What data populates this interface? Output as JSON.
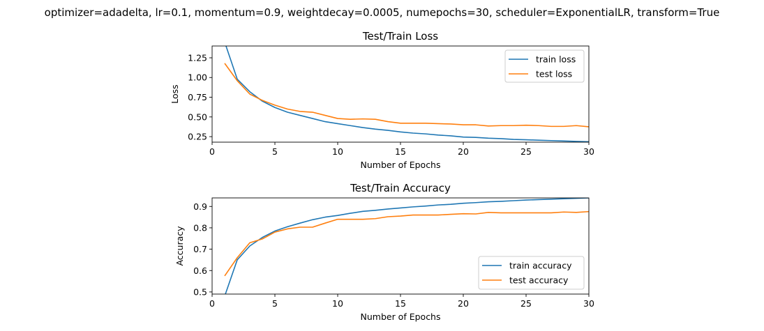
{
  "figure": {
    "suptitle": "optimizer=adadelta, lr=0.1, momentum=0.9, weightdecay=0.0005, numepochs=30, scheduler=ExponentialLR, transform=True"
  },
  "chart_data": [
    {
      "type": "line",
      "title": "Test/Train Loss",
      "xlabel": "Number of Epochs",
      "ylabel": "Loss",
      "xlim": [
        0,
        30
      ],
      "ylim": [
        0.18,
        1.4
      ],
      "xticks": [
        "0",
        "5",
        "10",
        "15",
        "20",
        "25",
        "30"
      ],
      "yticks": [
        "0.25",
        "0.50",
        "0.75",
        "1.00",
        "1.25"
      ],
      "grid": false,
      "legend": "top-right",
      "x": [
        1,
        2,
        3,
        4,
        5,
        6,
        7,
        8,
        9,
        10,
        11,
        12,
        13,
        14,
        15,
        16,
        17,
        18,
        19,
        20,
        21,
        22,
        23,
        24,
        25,
        26,
        27,
        28,
        29,
        30
      ],
      "series": [
        {
          "name": "train loss",
          "color": "#1f77b4",
          "values": [
            1.45,
            0.98,
            0.82,
            0.7,
            0.62,
            0.56,
            0.52,
            0.48,
            0.44,
            0.415,
            0.39,
            0.365,
            0.345,
            0.33,
            0.31,
            0.295,
            0.285,
            0.27,
            0.26,
            0.245,
            0.24,
            0.23,
            0.225,
            0.215,
            0.21,
            0.205,
            0.2,
            0.195,
            0.19,
            0.185
          ]
        },
        {
          "name": "test loss",
          "color": "#ff7f0e",
          "values": [
            1.18,
            0.96,
            0.79,
            0.71,
            0.65,
            0.6,
            0.57,
            0.56,
            0.52,
            0.48,
            0.47,
            0.475,
            0.47,
            0.44,
            0.42,
            0.42,
            0.42,
            0.415,
            0.41,
            0.4,
            0.4,
            0.385,
            0.39,
            0.39,
            0.395,
            0.39,
            0.38,
            0.38,
            0.39,
            0.375
          ]
        }
      ]
    },
    {
      "type": "line",
      "title": "Test/Train Accuracy",
      "xlabel": "Number of Epochs",
      "ylabel": "Accuracy",
      "xlim": [
        0,
        30
      ],
      "ylim": [
        0.49,
        0.94
      ],
      "xticks": [
        "0",
        "5",
        "10",
        "15",
        "20",
        "25",
        "30"
      ],
      "yticks": [
        "0.5",
        "0.6",
        "0.7",
        "0.8",
        "0.9"
      ],
      "grid": false,
      "legend": "bottom-right",
      "x": [
        1,
        2,
        3,
        4,
        5,
        6,
        7,
        8,
        9,
        10,
        11,
        12,
        13,
        14,
        15,
        16,
        17,
        18,
        19,
        20,
        21,
        22,
        23,
        24,
        25,
        26,
        27,
        28,
        29,
        30
      ],
      "series": [
        {
          "name": "train accuracy",
          "color": "#1f77b4",
          "values": [
            0.48,
            0.65,
            0.715,
            0.755,
            0.785,
            0.805,
            0.822,
            0.838,
            0.85,
            0.858,
            0.868,
            0.877,
            0.882,
            0.888,
            0.893,
            0.898,
            0.902,
            0.907,
            0.91,
            0.915,
            0.918,
            0.922,
            0.924,
            0.927,
            0.93,
            0.932,
            0.934,
            0.936,
            0.938,
            0.94
          ]
        },
        {
          "name": "test accuracy",
          "color": "#ff7f0e",
          "values": [
            0.575,
            0.66,
            0.73,
            0.748,
            0.78,
            0.795,
            0.803,
            0.803,
            0.822,
            0.84,
            0.84,
            0.84,
            0.843,
            0.852,
            0.855,
            0.86,
            0.86,
            0.86,
            0.863,
            0.866,
            0.865,
            0.872,
            0.87,
            0.87,
            0.87,
            0.87,
            0.87,
            0.874,
            0.872,
            0.876
          ]
        }
      ]
    }
  ]
}
